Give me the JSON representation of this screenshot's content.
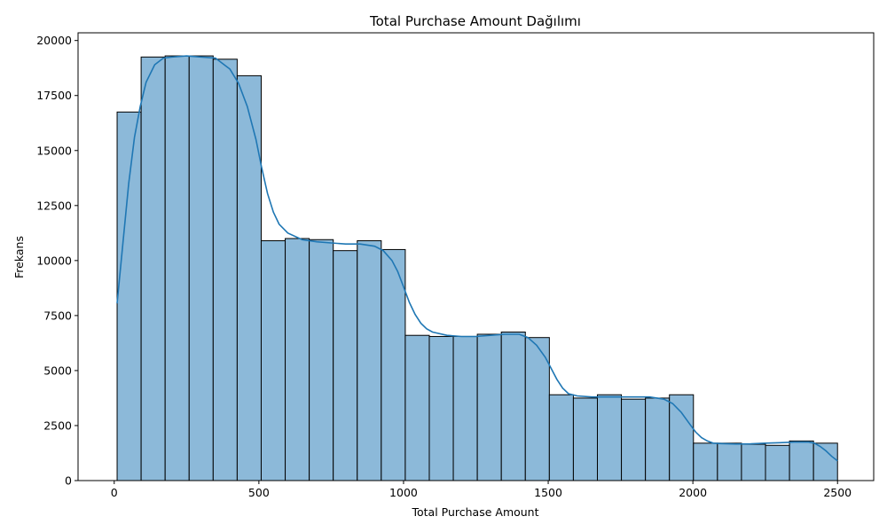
{
  "chart_data": {
    "type": "bar",
    "title": "Total Purchase Amount Dağılımı",
    "xlabel": "Total Purchase Amount",
    "ylabel": "Frekans",
    "xlim": [
      -125,
      2625
    ],
    "ylim": [
      0,
      20350
    ],
    "xticks": [
      0,
      500,
      1000,
      1500,
      2000,
      2500
    ],
    "yticks": [
      0,
      2500,
      5000,
      7500,
      10000,
      12500,
      15000,
      17500,
      20000
    ],
    "bin_start": 10,
    "bin_width": 83,
    "values": [
      16750,
      19250,
      19300,
      19300,
      19150,
      18400,
      10900,
      11000,
      10950,
      10450,
      10900,
      10500,
      6600,
      6550,
      6550,
      6650,
      6750,
      6500,
      3900,
      3750,
      3900,
      3700,
      3750,
      3900,
      1700,
      1700,
      1650,
      1600,
      1800,
      1700
    ],
    "kde": {
      "x": [
        10,
        30,
        50,
        70,
        90,
        110,
        140,
        170,
        200,
        250,
        300,
        350,
        400,
        430,
        460,
        490,
        510,
        530,
        550,
        570,
        600,
        650,
        700,
        750,
        800,
        850,
        900,
        930,
        960,
        980,
        1000,
        1020,
        1040,
        1060,
        1080,
        1100,
        1150,
        1200,
        1250,
        1300,
        1350,
        1400,
        1430,
        1460,
        1490,
        1510,
        1530,
        1550,
        1570,
        1600,
        1650,
        1700,
        1750,
        1800,
        1850,
        1900,
        1930,
        1960,
        1990,
        2010,
        2030,
        2050,
        2070,
        2100,
        2150,
        2200,
        2250,
        2300,
        2350,
        2400,
        2420,
        2440,
        2460,
        2480,
        2500
      ],
      "y": [
        8050,
        10800,
        13500,
        15600,
        17000,
        18100,
        18900,
        19200,
        19250,
        19300,
        19250,
        19200,
        18700,
        18050,
        17000,
        15500,
        14200,
        13050,
        12200,
        11650,
        11250,
        10950,
        10850,
        10800,
        10750,
        10750,
        10650,
        10450,
        10000,
        9500,
        8800,
        8100,
        7550,
        7150,
        6900,
        6750,
        6600,
        6550,
        6550,
        6600,
        6650,
        6650,
        6500,
        6150,
        5600,
        5100,
        4600,
        4200,
        3950,
        3850,
        3800,
        3800,
        3800,
        3800,
        3800,
        3700,
        3500,
        3100,
        2550,
        2200,
        1950,
        1800,
        1700,
        1680,
        1660,
        1670,
        1700,
        1720,
        1750,
        1750,
        1700,
        1550,
        1350,
        1100,
        900
      ]
    },
    "bar_color": "#8cb9d9",
    "bar_edge_color": "#000000",
    "kde_color": "#1f77b4",
    "grid": false,
    "legend": "none"
  }
}
